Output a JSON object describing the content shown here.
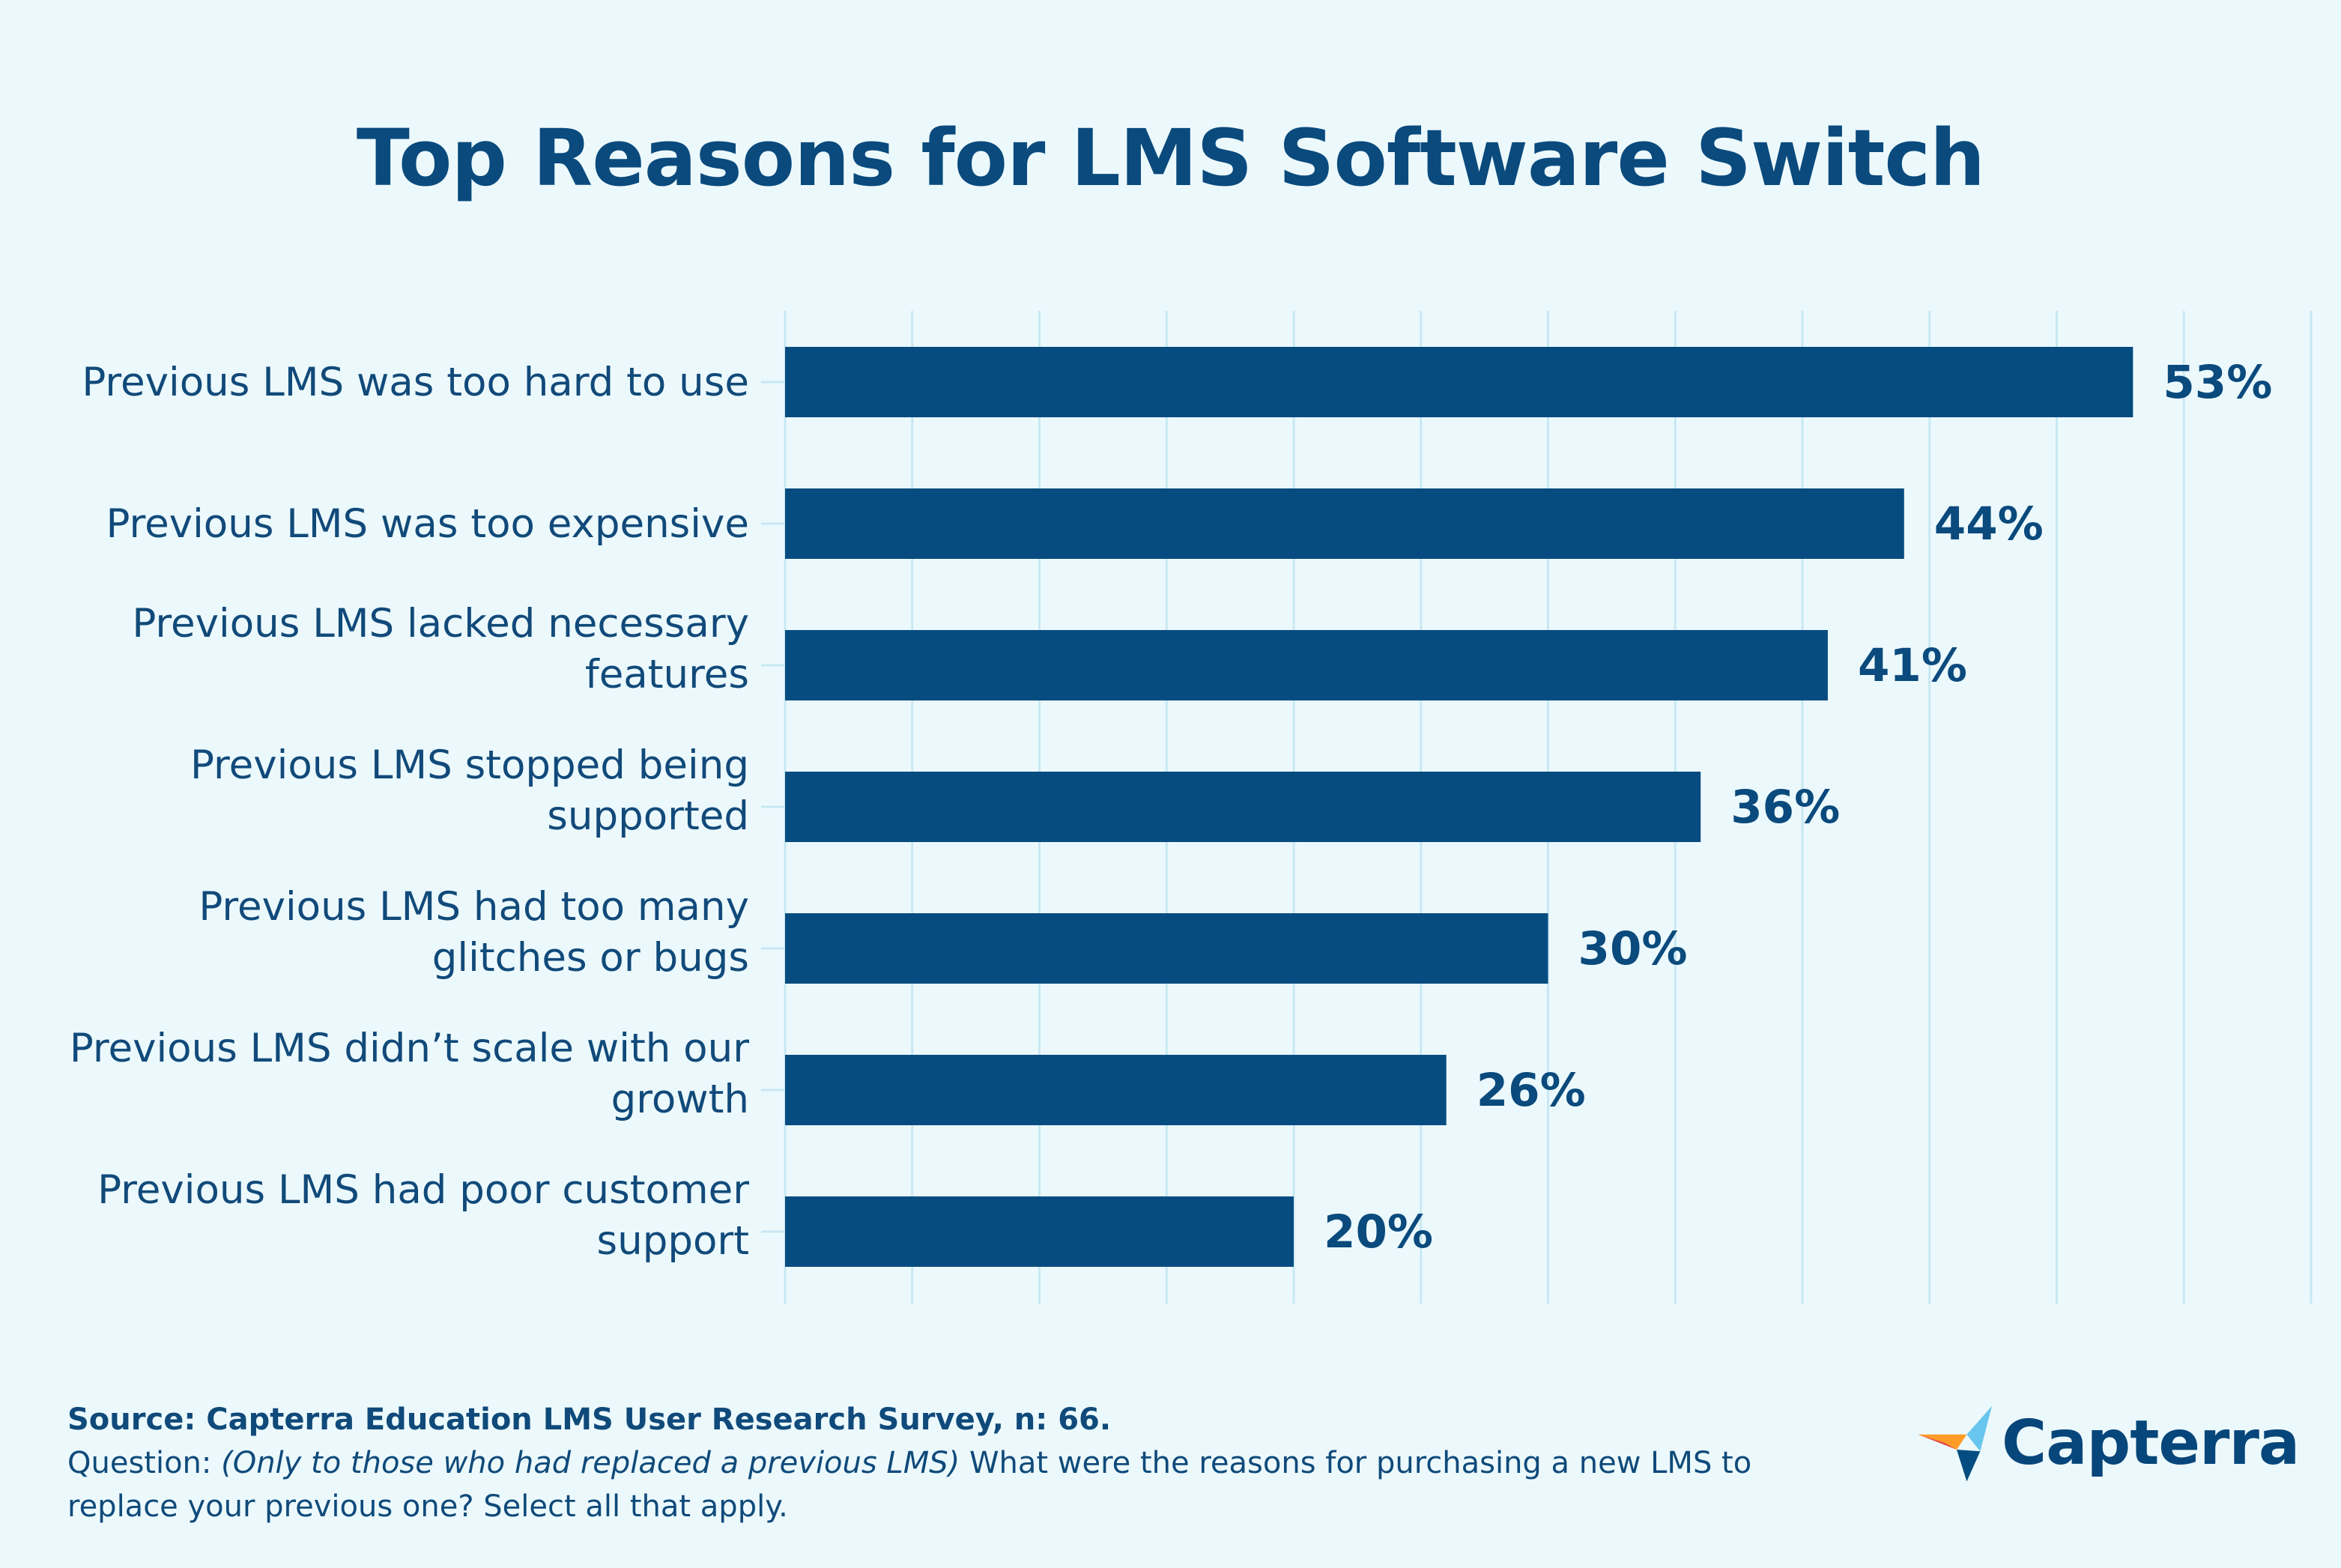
{
  "chart_data": {
    "type": "bar",
    "orientation": "horizontal",
    "title": "Top Reasons for LMS Software Switch",
    "categories": [
      [
        "Previous LMS was too hard to use"
      ],
      [
        "Previous LMS was too expensive"
      ],
      [
        "Previous LMS lacked necessary",
        "features"
      ],
      [
        "Previous LMS stopped being",
        "supported"
      ],
      [
        "Previous LMS had too many",
        "glitches or bugs"
      ],
      [
        "Previous LMS didn’t scale with our",
        "growth"
      ],
      [
        "Previous LMS had poor customer",
        "support"
      ]
    ],
    "values": [
      53,
      44,
      41,
      36,
      30,
      26,
      20
    ],
    "value_labels": [
      "53%",
      "44%",
      "41%",
      "36%",
      "30%",
      "26%",
      "20%"
    ],
    "xlim": [
      0,
      60
    ],
    "grid_step": 5,
    "grid": true,
    "bar_color": "#064c80",
    "grid_color": "#c7e8f3"
  },
  "footer": {
    "source": "Source: Capterra Education LMS User Research Survey, n: 66.",
    "question_prefix": "Question: ",
    "question_italic": "(Only to those who had replaced a previous LMS)",
    "question_text": " What were the reasons for purchasing a new LMS to replace your previous one? Select all that apply."
  },
  "logo": {
    "brand": "Capterra",
    "icon": "capterra-arrow-icon",
    "colors": [
      "#ff9d28",
      "#68c5ed",
      "#044d80",
      "#e54747"
    ]
  }
}
